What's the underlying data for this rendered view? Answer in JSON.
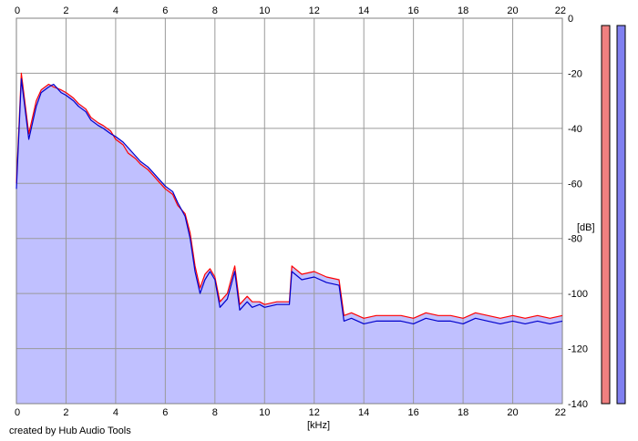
{
  "chart_data": {
    "type": "area",
    "xlabel": "[kHz]",
    "ylabel": "[dB]",
    "xlim": [
      0,
      22
    ],
    "ylim": [
      -140,
      0
    ],
    "x_ticks": [
      0,
      2,
      4,
      6,
      8,
      10,
      12,
      14,
      16,
      18,
      20,
      22
    ],
    "y_ticks": [
      0,
      -20,
      -40,
      -60,
      -80,
      -100,
      -120,
      -140
    ],
    "grid": true,
    "footer": "created by Hub Audio Tools",
    "fill_color": "#c0c0ff",
    "series": [
      {
        "color": "#ff0000",
        "x": [
          0.0,
          0.2,
          0.5,
          0.8,
          1.0,
          1.3,
          1.5,
          1.8,
          2.0,
          2.3,
          2.5,
          2.8,
          3.0,
          3.3,
          3.5,
          3.8,
          4.0,
          4.3,
          4.5,
          4.8,
          5.0,
          5.3,
          5.5,
          5.8,
          6.0,
          6.3,
          6.5,
          6.8,
          7.0,
          7.2,
          7.4,
          7.6,
          7.8,
          8.0,
          8.2,
          8.5,
          8.8,
          9.0,
          9.3,
          9.5,
          9.8,
          10.0,
          10.5,
          11.0,
          11.1,
          11.5,
          12.0,
          12.5,
          13.0,
          13.2,
          13.5,
          14.0,
          14.5,
          15.0,
          15.5,
          16.0,
          16.5,
          17.0,
          17.5,
          18.0,
          18.5,
          19.0,
          19.5,
          20.0,
          20.5,
          21.0,
          21.5,
          22.0
        ],
        "values": [
          -60,
          -20,
          -42,
          -30,
          -26,
          -24,
          -25,
          -26,
          -27,
          -29,
          -31,
          -33,
          -36,
          -38,
          -39,
          -41,
          -44,
          -46,
          -49,
          -51,
          -53,
          -55,
          -57,
          -60,
          -62,
          -64,
          -68,
          -71,
          -78,
          -90,
          -98,
          -93,
          -91,
          -94,
          -103,
          -100,
          -90,
          -104,
          -101,
          -103,
          -103,
          -104,
          -103,
          -103,
          -90,
          -93,
          -92,
          -94,
          -95,
          -108,
          -107,
          -109,
          -108,
          -108,
          -108,
          -109,
          -107,
          -108,
          -108,
          -109,
          -107,
          -108,
          -109,
          -108,
          -109,
          -108,
          -109,
          -108
        ]
      },
      {
        "color": "#0000cc",
        "x": [
          0.0,
          0.2,
          0.5,
          0.8,
          1.0,
          1.3,
          1.5,
          1.8,
          2.0,
          2.3,
          2.5,
          2.8,
          3.0,
          3.3,
          3.5,
          3.8,
          4.0,
          4.3,
          4.5,
          4.8,
          5.0,
          5.3,
          5.5,
          5.8,
          6.0,
          6.3,
          6.5,
          6.8,
          7.0,
          7.2,
          7.4,
          7.6,
          7.8,
          8.0,
          8.2,
          8.5,
          8.8,
          9.0,
          9.3,
          9.5,
          9.8,
          10.0,
          10.5,
          11.0,
          11.1,
          11.5,
          12.0,
          12.5,
          13.0,
          13.2,
          13.5,
          14.0,
          14.5,
          15.0,
          15.5,
          16.0,
          16.5,
          17.0,
          17.5,
          18.0,
          18.5,
          19.0,
          19.5,
          20.0,
          20.5,
          21.0,
          21.5,
          22.0
        ],
        "values": [
          -62,
          -22,
          -44,
          -32,
          -27,
          -25,
          -24,
          -27,
          -28,
          -30,
          -32,
          -34,
          -37,
          -39,
          -40,
          -42,
          -43,
          -45,
          -47,
          -50,
          -52,
          -54,
          -56,
          -59,
          -61,
          -63,
          -67,
          -72,
          -80,
          -92,
          -100,
          -95,
          -92,
          -95,
          -105,
          -102,
          -92,
          -106,
          -103,
          -105,
          -104,
          -105,
          -104,
          -104,
          -92,
          -95,
          -94,
          -96,
          -97,
          -110,
          -109,
          -111,
          -110,
          -110,
          -110,
          -111,
          -109,
          -110,
          -110,
          -111,
          -109,
          -110,
          -111,
          -110,
          -111,
          -110,
          -111,
          -110
        ]
      }
    ],
    "level_meters": [
      {
        "color": "#f08080"
      },
      {
        "color": "#8080f0"
      }
    ]
  }
}
